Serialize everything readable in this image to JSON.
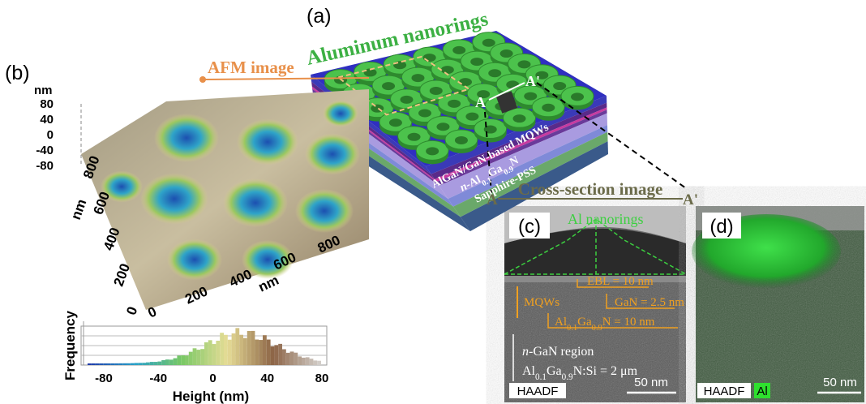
{
  "panel_a": {
    "label": "(a)",
    "title": "Aluminum nanorings",
    "afm_label": "AFM image",
    "marker_start": "A",
    "marker_end": "A'",
    "layers": [
      [
        {
          "text": "AlGaN/GaN-based MQWs"
        }
      ],
      [
        {
          "text": "n",
          "italic": true
        },
        {
          "text": "-Al"
        },
        {
          "text": "0.1",
          "sub": true
        },
        {
          "text": "Ga"
        },
        {
          "text": "0.9",
          "sub": true
        },
        {
          "text": "N"
        }
      ],
      [
        {
          "text": "Sapphire-PSS"
        }
      ]
    ],
    "cross_section": {
      "title": "Cross-section image",
      "start": "A",
      "end": "A'"
    }
  },
  "panel_b": {
    "label": "(b)",
    "z_unit": "nm",
    "z_ticks": [
      80,
      40,
      0,
      -40,
      -80
    ],
    "y_unit": "nm",
    "y_ticks": [
      800,
      600,
      400,
      200,
      0
    ],
    "x_unit": "nm",
    "x_ticks": [
      0,
      200,
      400,
      600,
      800
    ],
    "histogram": {
      "y_label": "Frequency",
      "x_label": "Height (nm)",
      "x_ticks": [
        -80,
        -40,
        0,
        40,
        80
      ]
    }
  },
  "panel_c": {
    "label": "(c)",
    "nanorings": "Al nanorings",
    "ebl": "EBL = 10 nm",
    "mqws": "MQWs",
    "gan": "GaN = 2.5 nm",
    "algan": [
      {
        "text": "Al"
      },
      {
        "text": "0.1",
        "sub": true
      },
      {
        "text": "Ga"
      },
      {
        "text": "0.9",
        "sub": true
      },
      {
        "text": "N = 10 nm"
      }
    ],
    "region": [
      {
        "text": "n",
        "italic": true
      },
      {
        "text": "-GaN region"
      }
    ],
    "doping": [
      {
        "text": "Al"
      },
      {
        "text": "0.1",
        "sub": true
      },
      {
        "text": "Ga"
      },
      {
        "text": "0.9",
        "sub": true
      },
      {
        "text": "N:Si = 2 μm"
      }
    ],
    "scale": "50 nm",
    "mode": "HAADF"
  },
  "panel_d": {
    "label": "(d)",
    "mode": "HAADF",
    "element": "Al",
    "scale": "50 nm"
  }
}
